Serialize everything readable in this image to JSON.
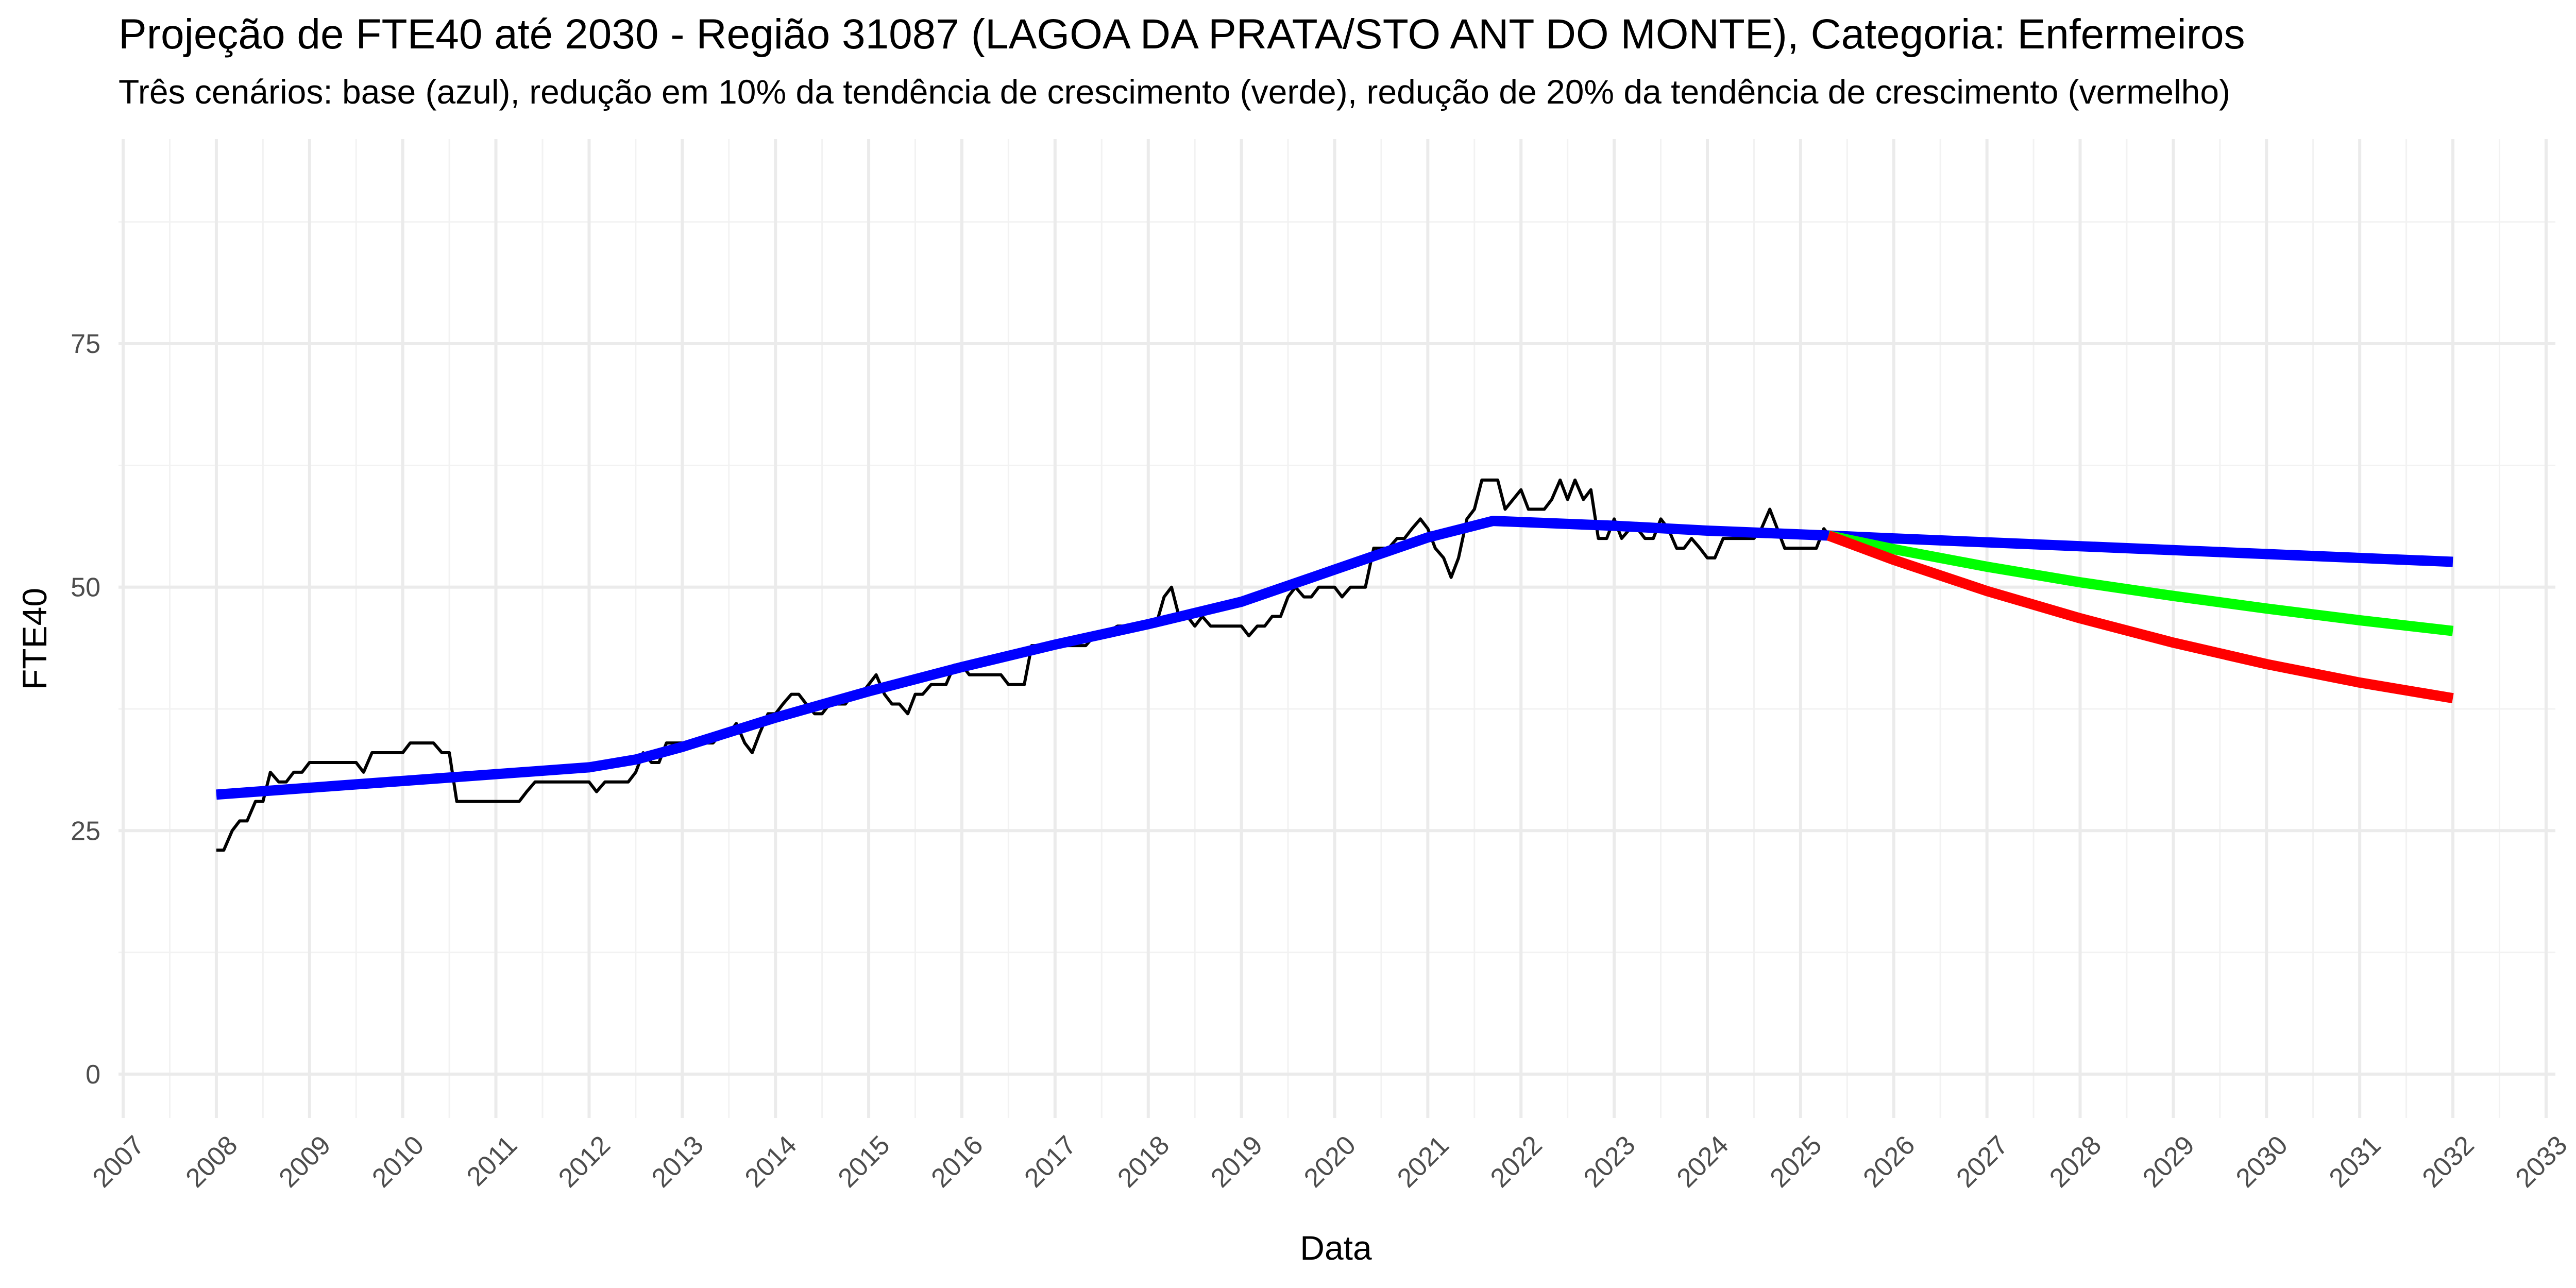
{
  "title": "Projeção de FTE40 até 2030 - Região 31087 (LAGOA DA PRATA/STO ANT DO MONTE), Categoria: Enfermeiros",
  "subtitle": "Três cenários: base (azul), redução em 10% da tendência de crescimento (verde), redução de 20% da tendência de crescimento (vermelho)",
  "chart_data": {
    "type": "line",
    "xlabel": "Data",
    "ylabel": "FTE40",
    "xlim": [
      2006.95,
      2033.1
    ],
    "ylim": [
      -4.5,
      96
    ],
    "x_ticks": [
      2007,
      2008,
      2009,
      2010,
      2011,
      2012,
      2013,
      2014,
      2015,
      2016,
      2017,
      2018,
      2019,
      2020,
      2021,
      2022,
      2023,
      2024,
      2025,
      2026,
      2027,
      2028,
      2029,
      2030,
      2031,
      2032,
      2033
    ],
    "y_ticks": [
      0,
      25,
      50,
      75
    ],
    "grid": true,
    "legend": "none",
    "series": [
      {
        "color": "#000000",
        "style": "thin",
        "points": [
          [
            2008.0,
            23
          ],
          [
            2008.08,
            23
          ],
          [
            2008.17,
            25
          ],
          [
            2008.25,
            26
          ],
          [
            2008.33,
            26
          ],
          [
            2008.42,
            28
          ],
          [
            2008.5,
            28
          ],
          [
            2008.58,
            31
          ],
          [
            2008.67,
            30
          ],
          [
            2008.75,
            30
          ],
          [
            2008.83,
            31
          ],
          [
            2008.92,
            31
          ],
          [
            2009.0,
            32
          ],
          [
            2009.5,
            32
          ],
          [
            2009.58,
            31
          ],
          [
            2009.67,
            33
          ],
          [
            2010.0,
            33
          ],
          [
            2010.08,
            34
          ],
          [
            2010.33,
            34
          ],
          [
            2010.42,
            33
          ],
          [
            2010.5,
            33
          ],
          [
            2010.58,
            28
          ],
          [
            2011.25,
            28
          ],
          [
            2011.33,
            29
          ],
          [
            2011.42,
            30
          ],
          [
            2012.0,
            30
          ],
          [
            2012.08,
            29
          ],
          [
            2012.17,
            30
          ],
          [
            2012.42,
            30
          ],
          [
            2012.5,
            31
          ],
          [
            2012.58,
            33
          ],
          [
            2012.67,
            32
          ],
          [
            2012.75,
            32
          ],
          [
            2012.83,
            34
          ],
          [
            2013.08,
            34
          ],
          [
            2013.17,
            34
          ],
          [
            2013.33,
            34
          ],
          [
            2013.42,
            35
          ],
          [
            2013.5,
            35
          ],
          [
            2013.58,
            36
          ],
          [
            2013.67,
            34
          ],
          [
            2013.75,
            33
          ],
          [
            2013.83,
            35
          ],
          [
            2013.92,
            37
          ],
          [
            2014.0,
            37
          ],
          [
            2014.08,
            38
          ],
          [
            2014.17,
            39
          ],
          [
            2014.25,
            39
          ],
          [
            2014.33,
            38
          ],
          [
            2014.42,
            37
          ],
          [
            2014.5,
            37
          ],
          [
            2014.58,
            38
          ],
          [
            2014.67,
            38
          ],
          [
            2014.75,
            38
          ],
          [
            2014.83,
            39
          ],
          [
            2014.92,
            39
          ],
          [
            2015.0,
            40
          ],
          [
            2015.08,
            41
          ],
          [
            2015.17,
            39
          ],
          [
            2015.25,
            38
          ],
          [
            2015.33,
            38
          ],
          [
            2015.42,
            37
          ],
          [
            2015.5,
            39
          ],
          [
            2015.58,
            39
          ],
          [
            2015.67,
            40
          ],
          [
            2015.75,
            40
          ],
          [
            2015.83,
            40
          ],
          [
            2015.92,
            42
          ],
          [
            2016.0,
            42
          ],
          [
            2016.08,
            41
          ],
          [
            2016.25,
            41
          ],
          [
            2016.33,
            41
          ],
          [
            2016.42,
            41
          ],
          [
            2016.5,
            40
          ],
          [
            2016.67,
            40
          ],
          [
            2016.75,
            44
          ],
          [
            2017.25,
            44
          ],
          [
            2017.33,
            44
          ],
          [
            2017.42,
            45
          ],
          [
            2017.5,
            45
          ],
          [
            2017.67,
            46
          ],
          [
            2018.0,
            46
          ],
          [
            2018.08,
            46
          ],
          [
            2018.17,
            49
          ],
          [
            2018.25,
            50
          ],
          [
            2018.33,
            47
          ],
          [
            2018.42,
            47
          ],
          [
            2018.5,
            46
          ],
          [
            2018.58,
            47
          ],
          [
            2018.67,
            46
          ],
          [
            2019.0,
            46
          ],
          [
            2019.08,
            45
          ],
          [
            2019.17,
            46
          ],
          [
            2019.25,
            46
          ],
          [
            2019.33,
            47
          ],
          [
            2019.42,
            47
          ],
          [
            2019.5,
            49
          ],
          [
            2019.58,
            50
          ],
          [
            2019.67,
            49
          ],
          [
            2019.75,
            49
          ],
          [
            2019.83,
            50
          ],
          [
            2020.0,
            50
          ],
          [
            2020.08,
            49
          ],
          [
            2020.17,
            50
          ],
          [
            2020.33,
            50
          ],
          [
            2020.42,
            54
          ],
          [
            2020.58,
            54
          ],
          [
            2020.67,
            55
          ],
          [
            2020.75,
            55
          ],
          [
            2020.83,
            56
          ],
          [
            2020.92,
            57
          ],
          [
            2021.0,
            56
          ],
          [
            2021.08,
            54
          ],
          [
            2021.17,
            53
          ],
          [
            2021.25,
            51
          ],
          [
            2021.33,
            53
          ],
          [
            2021.42,
            57
          ],
          [
            2021.5,
            58
          ],
          [
            2021.58,
            61
          ],
          [
            2021.75,
            61
          ],
          [
            2021.83,
            58
          ],
          [
            2022.0,
            60
          ],
          [
            2022.08,
            58
          ],
          [
            2022.25,
            58
          ],
          [
            2022.33,
            59
          ],
          [
            2022.42,
            61
          ],
          [
            2022.5,
            59
          ],
          [
            2022.58,
            61
          ],
          [
            2022.67,
            59
          ],
          [
            2022.75,
            60
          ],
          [
            2022.83,
            55
          ],
          [
            2022.92,
            55
          ],
          [
            2023.0,
            57
          ],
          [
            2023.08,
            55
          ],
          [
            2023.17,
            56
          ],
          [
            2023.25,
            56
          ],
          [
            2023.33,
            55
          ],
          [
            2023.42,
            55
          ],
          [
            2023.5,
            57
          ],
          [
            2023.58,
            56
          ],
          [
            2023.67,
            54
          ],
          [
            2023.75,
            54
          ],
          [
            2023.83,
            55
          ],
          [
            2023.92,
            54
          ],
          [
            2024.0,
            53
          ],
          [
            2024.08,
            53
          ],
          [
            2024.17,
            55
          ],
          [
            2024.25,
            55
          ],
          [
            2024.5,
            55
          ],
          [
            2024.58,
            56
          ],
          [
            2024.67,
            58
          ],
          [
            2024.75,
            56
          ],
          [
            2024.83,
            54
          ],
          [
            2025.17,
            54
          ],
          [
            2025.25,
            56
          ],
          [
            2025.33,
            55
          ]
        ]
      },
      {
        "color": "#0000ff",
        "style": "thick",
        "points": [
          [
            2008.0,
            28.7
          ],
          [
            2012.0,
            31.5
          ],
          [
            2012.5,
            32.3
          ],
          [
            2013.0,
            33.6
          ],
          [
            2014.0,
            36.6
          ],
          [
            2015.0,
            39.3
          ],
          [
            2016.0,
            41.8
          ],
          [
            2017.0,
            44.1
          ],
          [
            2018.0,
            46.2
          ],
          [
            2019.0,
            48.5
          ],
          [
            2020.0,
            51.8
          ],
          [
            2021.0,
            55.1
          ],
          [
            2021.7,
            56.8
          ],
          [
            2023.0,
            56.3
          ],
          [
            2024.0,
            55.8
          ],
          [
            2025.3,
            55.3
          ],
          [
            2026.0,
            55.0
          ],
          [
            2028.0,
            54.2
          ],
          [
            2030.0,
            53.4
          ],
          [
            2032.0,
            52.6
          ]
        ]
      },
      {
        "color": "#00ff00",
        "style": "thick",
        "points": [
          [
            2025.3,
            55.3
          ],
          [
            2026.0,
            53.9
          ],
          [
            2027.0,
            52.1
          ],
          [
            2028.0,
            50.5
          ],
          [
            2029.0,
            49.1
          ],
          [
            2030.0,
            47.8
          ],
          [
            2031.0,
            46.6
          ],
          [
            2032.0,
            45.5
          ]
        ]
      },
      {
        "color": "#ff0000",
        "style": "thick",
        "points": [
          [
            2025.3,
            55.3
          ],
          [
            2026.0,
            52.8
          ],
          [
            2027.0,
            49.6
          ],
          [
            2028.0,
            46.8
          ],
          [
            2029.0,
            44.3
          ],
          [
            2030.0,
            42.1
          ],
          [
            2031.0,
            40.2
          ],
          [
            2032.0,
            38.6
          ]
        ]
      }
    ]
  }
}
